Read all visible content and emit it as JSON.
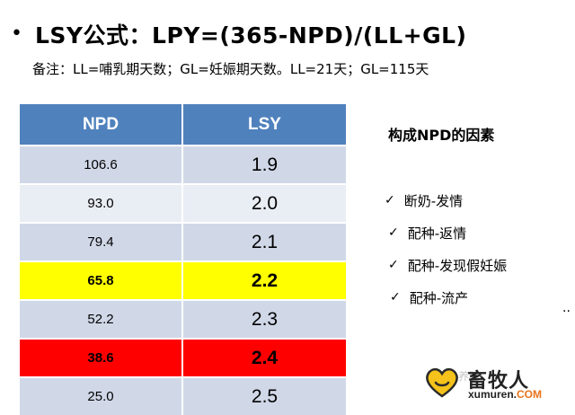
{
  "title": "LSY公式：LPY=(365-NPD)/(LL+GL)",
  "note": "备注：LL=哺乳期天数；GL=妊娠期天数。LL=21天；GL=115天",
  "table": {
    "headers": [
      "NPD",
      "LSY"
    ],
    "rows": [
      {
        "npd": "106.6",
        "lsy": "1.9",
        "highlight": "none"
      },
      {
        "npd": "93.0",
        "lsy": "2.0",
        "highlight": "none"
      },
      {
        "npd": "79.4",
        "lsy": "2.1",
        "highlight": "none"
      },
      {
        "npd": "65.8",
        "lsy": "2.2",
        "highlight": "yellow"
      },
      {
        "npd": "52.2",
        "lsy": "2.3",
        "highlight": "none"
      },
      {
        "npd": "38.6",
        "lsy": "2.4",
        "highlight": "red"
      },
      {
        "npd": "25.0",
        "lsy": "2.5",
        "highlight": "none"
      }
    ]
  },
  "factors": {
    "title": "构成NPD的因素",
    "items": [
      "断奶-发情",
      "配种-返情",
      "配种-发现假妊娠",
      "配种-流产"
    ],
    "ellipsis": ".."
  },
  "watermark": {
    "faded_text": "养猪",
    "brand_cn": "畜牧人",
    "brand_url_main": "xumuren.",
    "brand_url_tld": "COM"
  },
  "colors": {
    "header_bg": "#4f81bd",
    "row_band_dark": "#d0d8e8",
    "row_band_light": "#e9edf4",
    "highlight_yellow": "#ffff00",
    "highlight_red": "#ff0000"
  }
}
